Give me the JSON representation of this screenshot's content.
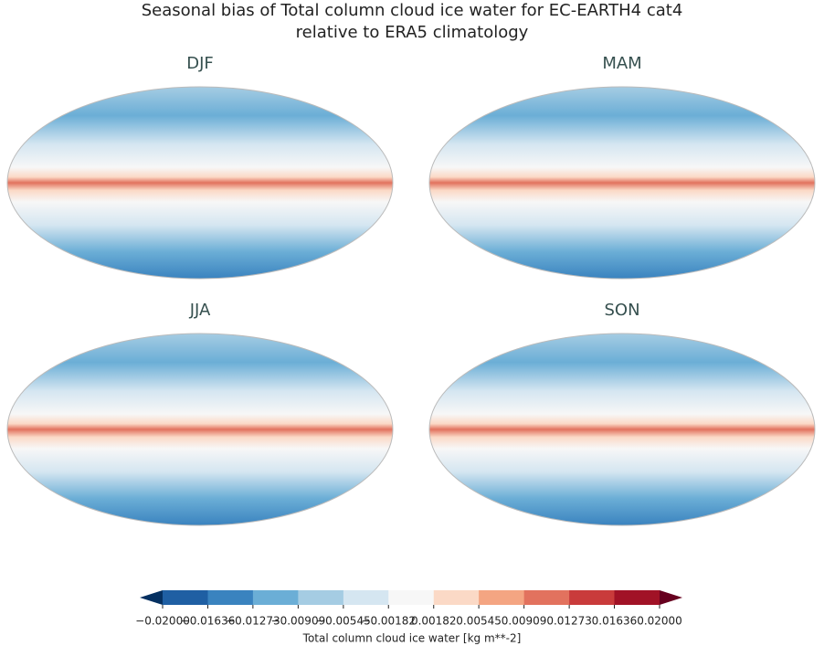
{
  "title": [
    "Seasonal bias of Total column cloud ice water for EC-EARTH4 cat4",
    "relative to ERA5 climatology"
  ],
  "panels": [
    "DJF",
    "MAM",
    "JJA",
    "SON"
  ],
  "colorbar": {
    "label": "Total column cloud ice water [kg m**-2]",
    "ticks": [
      {
        "value": -0.02,
        "label": "−0.02000"
      },
      {
        "value": -0.01636,
        "label": "−0.01636"
      },
      {
        "value": -0.01273,
        "label": "−0.01273"
      },
      {
        "value": -0.00909,
        "label": "−0.00909"
      },
      {
        "value": -0.00545,
        "label": "−0.00545"
      },
      {
        "value": -0.00182,
        "label": "−0.00182"
      },
      {
        "value": 0.00182,
        "label": "0.00182"
      },
      {
        "value": 0.00545,
        "label": "0.00545"
      },
      {
        "value": 0.00909,
        "label": "0.00909"
      },
      {
        "value": 0.01273,
        "label": "0.01273"
      },
      {
        "value": 0.01636,
        "label": "0.01636"
      },
      {
        "value": 0.02,
        "label": "0.02000"
      }
    ],
    "colors": [
      "#1f5fa3",
      "#3a83bf",
      "#6baed6",
      "#a5cce3",
      "#d5e6f1",
      "#f7f7f7",
      "#fbd9c6",
      "#f4a582",
      "#e2725e",
      "#c93b3b",
      "#a11226"
    ],
    "extend_colors": [
      "#053061",
      "#67001f"
    ]
  }
}
